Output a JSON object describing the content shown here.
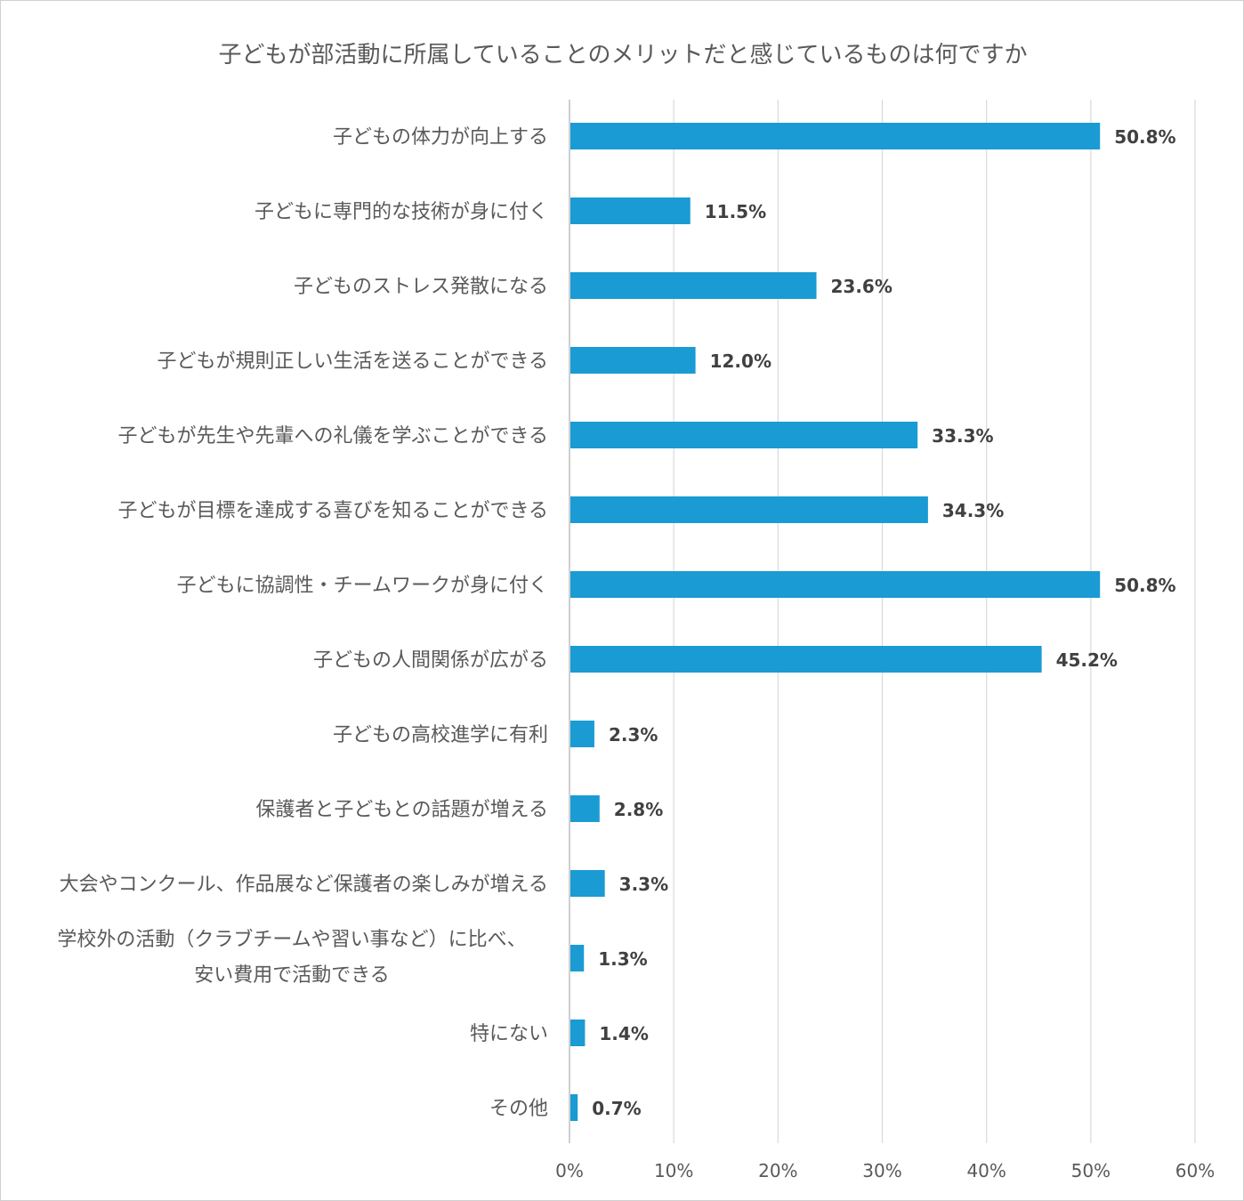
{
  "chart_data": {
    "type": "bar",
    "orientation": "horizontal",
    "title": "子どもが部活動に所属していることのメリットだと感じているものは何ですか",
    "categories": [
      "子どもの体力が向上する",
      "子どもに専門的な技術が身に付く",
      "子どものストレス発散になる",
      "子どもが規則正しい生活を送ることができる",
      "子どもが先生や先輩への礼儀を学ぶことができる",
      "子どもが目標を達成する喜びを知ることができる",
      "子どもに協調性・チームワークが身に付く",
      "子どもの人間関係が広がる",
      "子どもの高校進学に有利",
      "保護者と子どもとの話題が増える",
      "大会やコンクール、作品展など保護者の楽しみが増える",
      "学校外の活動（クラブチームや習い事など）に比べ、\n安い費用で活動できる",
      "特にない",
      "その他"
    ],
    "values": [
      50.8,
      11.5,
      23.6,
      12.0,
      33.3,
      34.3,
      50.8,
      45.2,
      2.3,
      2.8,
      3.3,
      1.3,
      1.4,
      0.7
    ],
    "data_labels": [
      "50.8%",
      "11.5%",
      "23.6%",
      "12.0%",
      "33.3%",
      "34.3%",
      "50.8%",
      "45.2%",
      "2.3%",
      "2.8%",
      "3.3%",
      "1.3%",
      "1.4%",
      "0.7%"
    ],
    "xlim": [
      0,
      60
    ],
    "x_ticks": [
      "0%",
      "10%",
      "20%",
      "30%",
      "40%",
      "50%",
      "60%"
    ],
    "grid": true,
    "bar_color": "#1a9bd3",
    "xlabel": "",
    "ylabel": ""
  }
}
